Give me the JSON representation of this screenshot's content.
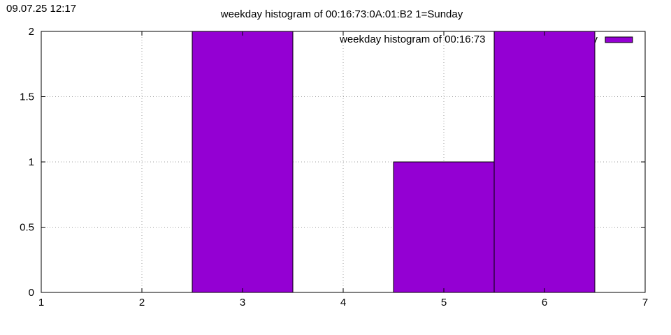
{
  "timestamp": "09.07.25 12:17",
  "chart_data": {
    "type": "bar",
    "title": "weekday histogram of 00:16:73:0A:01:B2 1=Sunday",
    "xlabel": "",
    "ylabel": "",
    "x": [
      3,
      5,
      6
    ],
    "values": [
      2,
      1,
      2
    ],
    "bar_width": 1,
    "xlim": [
      1,
      7
    ],
    "ylim": [
      0,
      2
    ],
    "xticks": [
      "1",
      "2",
      "3",
      "4",
      "5",
      "6",
      "7"
    ],
    "yticks": [
      "0",
      "0.5",
      "1",
      "1.5",
      "2"
    ],
    "grid": true,
    "legend": {
      "position": "top-right",
      "label": "weekday histogram of 00:16:73:0A:01:B2 1=Sunday",
      "visible_text": "weekday histogram of 00:16:73",
      "trailing_glyph": "y"
    },
    "colors": {
      "bar": "#9400d3",
      "grid": "#a0a0a0",
      "axis": "#000000"
    }
  }
}
